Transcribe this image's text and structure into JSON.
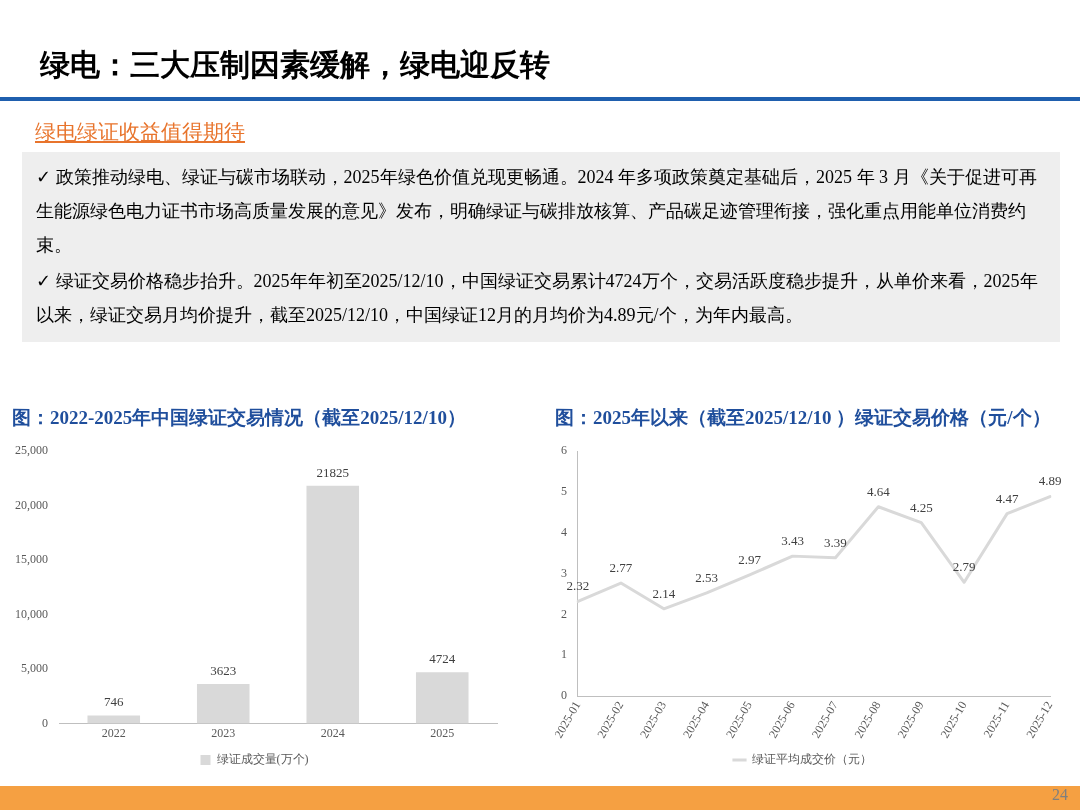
{
  "chart_data": [
    {
      "type": "other",
      "title": "绿电：三大压制因素缓解，绿电迎反转",
      "subtitle": "绿电绿证收益值得期待",
      "annotations": [
        "✓  政策推动绿电、绿证与碳市场联动，2025年绿色价值兑现更畅通。2024 年多项政策奠定基础后，2025 年 3 月《关于促进可再生能源绿色电力证书市场高质量发展的意见》发布，明确绿证与碳排放核算、产品碳足迹管理衔接，强化重点用能单位消费约束。",
        "✓  绿证交易价格稳步抬升。2025年年初至2025/12/10，中国绿证交易累计4724万个，交易活跃度稳步提升，从单价来看，2025年以来，绿证交易月均价提升，截至2025/12/10，中国绿证12月的月均价为4.89元/个，为年内最高。",
        "24"
      ]
    },
    {
      "type": "bar",
      "title": "图：2022-2025年中国绿证交易情况（截至2025/12/10）",
      "categories": [
        "2022",
        "2023",
        "2024",
        "2025"
      ],
      "series": [
        {
          "name": "绿证成交量(万个)",
          "color": "#d9d9d9",
          "values": [
            746,
            3623,
            21825,
            4724
          ]
        }
      ],
      "ylim": [
        0,
        25000
      ],
      "yticks": [
        0,
        {
          "value": 5000,
          "label": "5,000"
        },
        {
          "value": 10000,
          "label": "10,000"
        },
        {
          "value": 15000,
          "label": "15,000"
        },
        {
          "value": 20000,
          "label": "20,000"
        },
        {
          "value": 25000,
          "label": "25,000"
        }
      ],
      "data_labels": true,
      "legend": "bottom"
    },
    {
      "type": "line",
      "title": "图：2025年以来（截至2025/12/10 ）绿证交易价格（元/个）",
      "categories": [
        "2025-01",
        "2025-02",
        "2025-03",
        "2025-04",
        "2025-05",
        "2025-06",
        "2025-07",
        "2025-08",
        "2025-09",
        "2025-10",
        "2025-11",
        "2025-12"
      ],
      "series": [
        {
          "name": "绿证平均成交价（元）",
          "color": "#d9d9d9",
          "values": [
            2.32,
            2.77,
            2.14,
            2.53,
            2.97,
            3.43,
            3.39,
            4.64,
            4.25,
            2.79,
            4.47,
            4.89
          ]
        }
      ],
      "ylim": [
        0,
        6
      ],
      "yticks": [
        0,
        1,
        2,
        3,
        4,
        5,
        6
      ],
      "data_labels": true,
      "legend": "bottom"
    }
  ]
}
